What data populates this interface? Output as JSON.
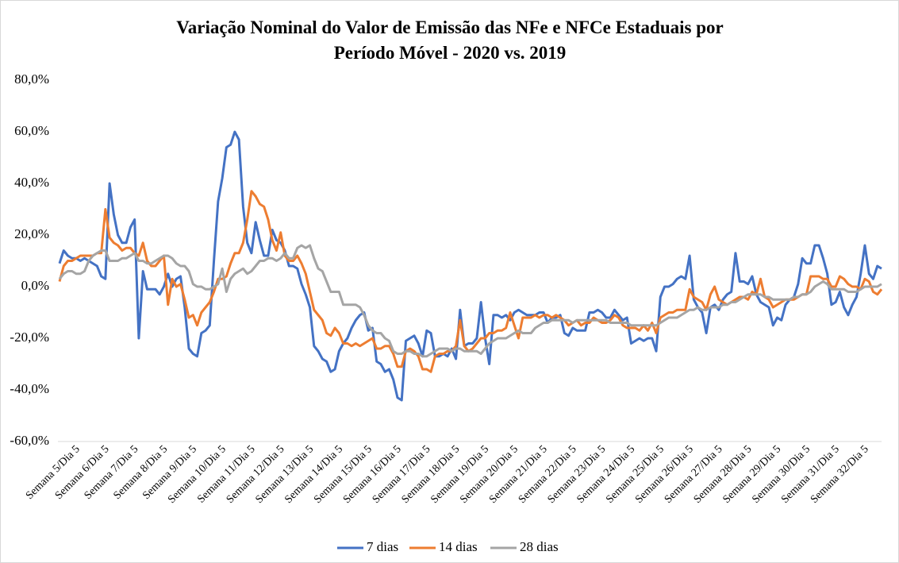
{
  "chart_data": {
    "type": "line",
    "title": [
      "Variação Nominal do Valor de Emissão das NFe e NFCe Estaduais por",
      "Período Móvel - 2020 vs. 2019"
    ],
    "categories": [
      "Semana 5/Dia 5",
      null,
      null,
      null,
      null,
      null,
      null,
      "Semana 6/Dia 5",
      null,
      null,
      null,
      null,
      null,
      null,
      "Semana 7/Dia 5",
      null,
      null,
      null,
      null,
      null,
      null,
      "Semana 8/Dia 5",
      null,
      null,
      null,
      null,
      null,
      null,
      "Semana 9/Dia 5",
      null,
      null,
      null,
      null,
      null,
      null,
      "Semana 10/Dia 5",
      null,
      null,
      null,
      null,
      null,
      null,
      "Semana 11/Dia 5",
      null,
      null,
      null,
      null,
      null,
      null,
      "Semana 12/Dia 5",
      null,
      null,
      null,
      null,
      null,
      null,
      "Semana 13/Dia 5",
      null,
      null,
      null,
      null,
      null,
      null,
      "Semana 14/Dia 5",
      null,
      null,
      null,
      null,
      null,
      null,
      "Semana 15/Dia 5",
      null,
      null,
      null,
      null,
      null,
      null,
      "Semana 16/Dia 5",
      null,
      null,
      null,
      null,
      null,
      null,
      "Semana 17/Dia 5",
      null,
      null,
      null,
      null,
      null,
      null,
      "Semana 18/Dia 5",
      null,
      null,
      null,
      null,
      null,
      null,
      "Semana 19/Dia 5",
      null,
      null,
      null,
      null,
      null,
      null,
      "Semana 20/Dia 5",
      null,
      null,
      null,
      null,
      null,
      null,
      "Semana 21/Dia 5",
      null,
      null,
      null,
      null,
      null,
      null,
      "Semana 22/Dia 5",
      null,
      null,
      null,
      null,
      null,
      null,
      "Semana 23/Dia 5",
      null,
      null,
      null,
      null,
      null,
      null,
      "Semana 24/Dia 5",
      null,
      null,
      null,
      null,
      null,
      null,
      "Semana 25/Dia 5",
      null,
      null,
      null,
      null,
      null,
      null,
      "Semana 26/Dia 5",
      null,
      null,
      null,
      null,
      null,
      null,
      "Semana 27/Dia 5",
      null,
      null,
      null,
      null,
      null,
      null,
      "Semana 28/Dia 5",
      null,
      null,
      null,
      null,
      null,
      null,
      "Semana 29/Dia 5",
      null,
      null,
      null,
      null,
      null,
      null,
      "Semana 30/Dia 5",
      null,
      null,
      null,
      null,
      null,
      null,
      "Semana 31/Dia 5",
      null,
      null,
      null,
      null,
      null,
      null,
      "Semana 32/Dia 5",
      null,
      null,
      null,
      null,
      null,
      null,
      null,
      null
    ],
    "series": [
      {
        "name": "7 dias",
        "color": "#4472c4",
        "values": [
          9,
          14,
          12,
          11,
          11,
          10,
          11,
          10,
          9,
          8,
          4,
          3,
          40,
          28,
          20,
          17,
          17,
          23,
          26,
          -20,
          6,
          -1,
          -1,
          -1,
          -3,
          0,
          5,
          0,
          3,
          4,
          -8,
          -24,
          -26,
          -27,
          -18,
          -17,
          -15,
          10,
          33,
          42,
          54,
          55,
          60,
          57,
          31,
          17,
          13,
          25,
          18,
          12,
          12,
          22,
          18,
          17,
          14,
          8,
          8,
          7,
          1,
          -3,
          -8,
          -23,
          -25,
          -28,
          -29,
          -33,
          -32,
          -25,
          -22,
          -20,
          -16,
          -13,
          -11,
          -10,
          -17,
          -16,
          -29,
          -30,
          -33,
          -32,
          -36,
          -43,
          -44,
          -21,
          -20,
          -19,
          -22,
          -27,
          -17,
          -18,
          -27,
          -27,
          -26,
          -27,
          -24,
          -28,
          -9,
          -23,
          -22,
          -22,
          -20,
          -6,
          -20,
          -30,
          -11,
          -11,
          -12,
          -11,
          -13,
          -10,
          -9,
          -10,
          -11,
          -11,
          -11,
          -10,
          -10,
          -14,
          -12,
          -12,
          -11,
          -18,
          -19,
          -16,
          -17,
          -17,
          -17,
          -10,
          -10,
          -9,
          -10,
          -12,
          -12,
          -9,
          -11,
          -13,
          -12,
          -22,
          -21,
          -20,
          -21,
          -20,
          -20,
          -25,
          -4,
          0,
          0,
          1,
          3,
          4,
          3,
          12,
          -5,
          -8,
          -10,
          -18,
          -8,
          -7,
          -9,
          -5,
          -3,
          -2,
          13,
          2,
          2,
          1,
          4,
          -3,
          -6,
          -7,
          -8,
          -15,
          -12,
          -13,
          -7,
          -5,
          -4,
          1,
          11,
          9,
          9,
          16,
          16,
          11,
          5,
          -7,
          -6,
          -2,
          -8,
          -11,
          -7,
          -4,
          5,
          16,
          5,
          3,
          8,
          7
        ]
      },
      {
        "name": "14 dias",
        "color": "#ed7d31",
        "values": [
          2,
          8,
          10,
          10,
          11,
          12,
          12,
          12,
          12,
          13,
          13,
          30,
          19,
          17,
          16,
          14,
          15,
          15,
          13,
          12,
          17,
          10,
          8,
          8,
          10,
          12,
          -7,
          3,
          0,
          1,
          -5,
          -12,
          -11,
          -15,
          -10,
          -8,
          -6,
          -2,
          3,
          3,
          4,
          9,
          13,
          13,
          17,
          26,
          37,
          35,
          32,
          31,
          26,
          18,
          14,
          21,
          12,
          10,
          10,
          12,
          9,
          5,
          -2,
          -9,
          -11,
          -13,
          -18,
          -19,
          -16,
          -18,
          -22,
          -22,
          -23,
          -22,
          -23,
          -22,
          -21,
          -20,
          -24,
          -24,
          -23,
          -23,
          -26,
          -31,
          -31,
          -25,
          -24,
          -25,
          -27,
          -32,
          -32,
          -33,
          -27,
          -26,
          -26,
          -25,
          -25,
          -23,
          -13,
          -23,
          -25,
          -24,
          -22,
          -20,
          -20,
          -18,
          -18,
          -17,
          -17,
          -16,
          -10,
          -15,
          -20,
          -12,
          -12,
          -12,
          -11,
          -12,
          -11,
          -11,
          -12,
          -11,
          -12,
          -13,
          -15,
          -14,
          -13,
          -15,
          -14,
          -14,
          -12,
          -13,
          -14,
          -14,
          -13,
          -11,
          -12,
          -15,
          -16,
          -16,
          -16,
          -17,
          -15,
          -17,
          -14,
          -18,
          -12,
          -11,
          -10,
          -10,
          -9,
          -9,
          -9,
          -1,
          -4,
          -5,
          -6,
          -9,
          -3,
          0,
          -5,
          -6,
          -7,
          -6,
          -5,
          -4,
          -4,
          -5,
          -2,
          -3,
          3,
          -4,
          -5,
          -8,
          -7,
          -6,
          -5,
          -5,
          -5,
          -4,
          -3,
          -3,
          4,
          4,
          4,
          3,
          3,
          0,
          0,
          4,
          3,
          1,
          0,
          0,
          -1,
          3,
          2,
          -2,
          -3,
          -1
        ]
      },
      {
        "name": "28 dias",
        "color": "#a5a5a5",
        "values": [
          3,
          5,
          6,
          6,
          5,
          5,
          6,
          10,
          12,
          13,
          14,
          14,
          10,
          10,
          10,
          11,
          11,
          12,
          13,
          10,
          10,
          9,
          9,
          10,
          11,
          12,
          12,
          11,
          9,
          8,
          8,
          6,
          1,
          0,
          0,
          -1,
          -1,
          0,
          1,
          7,
          -2,
          3,
          5,
          6,
          7,
          5,
          6,
          8,
          10,
          10,
          11,
          11,
          10,
          11,
          13,
          11,
          11,
          15,
          16,
          15,
          16,
          11,
          7,
          6,
          2,
          -2,
          -2,
          -2,
          -7,
          -7,
          -7,
          -7,
          -8,
          -11,
          -15,
          -17,
          -18,
          -18,
          -20,
          -21,
          -25,
          -26,
          -26,
          -25,
          -25,
          -26,
          -26,
          -27,
          -27,
          -26,
          -25,
          -24,
          -24,
          -24,
          -25,
          -24,
          -24,
          -25,
          -25,
          -25,
          -25,
          -26,
          -24,
          -22,
          -21,
          -20,
          -20,
          -20,
          -19,
          -18,
          -17,
          -18,
          -18,
          -18,
          -16,
          -15,
          -14,
          -14,
          -13,
          -13,
          -13,
          -13,
          -13,
          -14,
          -13,
          -13,
          -13,
          -13,
          -13,
          -13,
          -13,
          -13,
          -14,
          -14,
          -14,
          -14,
          -14,
          -15,
          -15,
          -15,
          -15,
          -15,
          -15,
          -15,
          -14,
          -13,
          -12,
          -12,
          -12,
          -11,
          -10,
          -9,
          -9,
          -8,
          -9,
          -9,
          -8,
          -8,
          -8,
          -7,
          -7,
          -6,
          -6,
          -5,
          -4,
          -3,
          -3,
          -3,
          -3,
          -4,
          -4,
          -5,
          -5,
          -5,
          -5,
          -5,
          -4,
          -4,
          -3,
          -3,
          -2,
          0,
          1,
          2,
          1,
          -1,
          -1,
          -1,
          -1,
          -2,
          -2,
          -2,
          -1,
          0,
          0,
          0,
          0,
          1
        ]
      }
    ],
    "ylim": [
      -60,
      80
    ],
    "yticks": [
      {
        "value": -60,
        "label": "-60,0%"
      },
      {
        "value": -40,
        "label": "-40,0%"
      },
      {
        "value": -20,
        "label": "-20,0%"
      },
      {
        "value": 0,
        "label": "0,0%"
      },
      {
        "value": 20,
        "label": "20,0%"
      },
      {
        "value": 40,
        "label": "40,0%"
      },
      {
        "value": 60,
        "label": "60,0%"
      },
      {
        "value": 80,
        "label": "80,0%"
      }
    ],
    "grid": false,
    "legend": "bottom"
  }
}
